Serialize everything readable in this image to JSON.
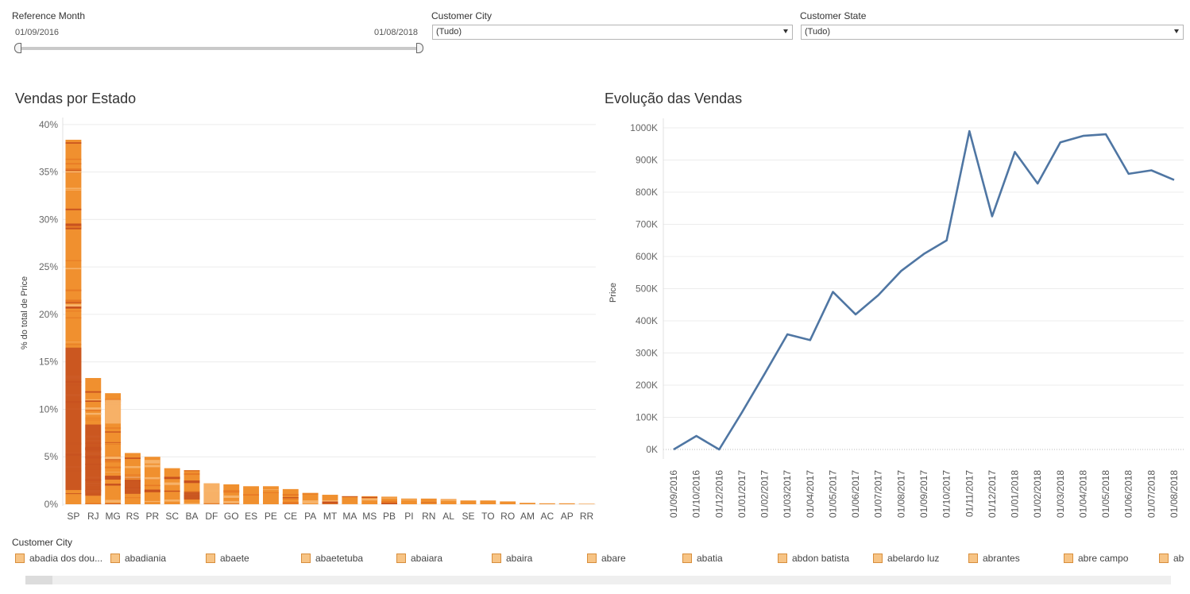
{
  "filters": {
    "reference_month": {
      "label": "Reference Month",
      "start": "01/09/2016",
      "end": "01/08/2018"
    },
    "customer_city": {
      "label": "Customer City",
      "value": "(Tudo)"
    },
    "customer_state": {
      "label": "Customer State",
      "value": "(Tudo)"
    }
  },
  "colors": {
    "bar_base": "#f0902f",
    "bar_dark": "#c8521f",
    "bar_light": "#f7b36a",
    "line": "#4f76a3",
    "grid": "#ececec"
  },
  "chart_data": [
    {
      "type": "bar",
      "title": "Vendas por Estado",
      "ylabel": "% do total de Price",
      "categories": [
        "SP",
        "RJ",
        "MG",
        "RS",
        "PR",
        "SC",
        "BA",
        "DF",
        "GO",
        "ES",
        "PE",
        "CE",
        "PA",
        "MT",
        "MA",
        "MS",
        "PB",
        "PI",
        "RN",
        "AL",
        "SE",
        "TO",
        "RO",
        "AM",
        "AC",
        "AP",
        "RR"
      ],
      "values": [
        38.4,
        13.3,
        11.7,
        5.4,
        5.0,
        3.8,
        3.6,
        2.2,
        2.1,
        1.9,
        1.9,
        1.6,
        1.2,
        1.0,
        0.85,
        0.85,
        0.8,
        0.6,
        0.6,
        0.55,
        0.4,
        0.4,
        0.3,
        0.15,
        0.1,
        0.1,
        0.05
      ],
      "ylim": [
        0,
        40
      ],
      "yticks": [
        "0%",
        "5%",
        "10%",
        "15%",
        "20%",
        "25%",
        "30%",
        "35%",
        "40%"
      ],
      "stacked_by": "Customer City"
    },
    {
      "type": "line",
      "title": "Evolução das Vendas",
      "ylabel": "Price",
      "x": [
        "01/09/2016",
        "01/10/2016",
        "01/12/2016",
        "01/01/2017",
        "01/02/2017",
        "01/03/2017",
        "01/04/2017",
        "01/05/2017",
        "01/06/2017",
        "01/07/2017",
        "01/08/2017",
        "01/09/2017",
        "01/10/2017",
        "01/11/2017",
        "01/12/2017",
        "01/01/2018",
        "01/02/2018",
        "01/03/2018",
        "01/04/2018",
        "01/05/2018",
        "01/06/2018",
        "01/07/2018",
        "01/08/2018"
      ],
      "values": [
        0,
        42000,
        0,
        115000,
        235000,
        358000,
        340000,
        490000,
        420000,
        480000,
        555000,
        608000,
        650000,
        990000,
        725000,
        925000,
        827000,
        955000,
        975000,
        980000,
        857000,
        868000,
        838000
      ],
      "ylim": [
        0,
        1000000
      ],
      "yticks": [
        "0K",
        "100K",
        "200K",
        "300K",
        "400K",
        "500K",
        "600K",
        "700K",
        "800K",
        "900K",
        "1000K"
      ]
    }
  ],
  "legend": {
    "title": "Customer City",
    "items": [
      "abadia dos dou...",
      "abadiania",
      "abaete",
      "abaetetuba",
      "abaiara",
      "abaira",
      "abare",
      "abatia",
      "abdon batista",
      "abelardo luz",
      "abrantes",
      "abre campo",
      "ab"
    ]
  }
}
